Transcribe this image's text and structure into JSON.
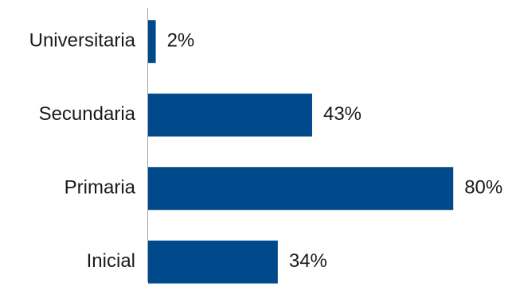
{
  "chart_data": {
    "type": "bar",
    "orientation": "horizontal",
    "categories": [
      "Universitaria",
      "Secundaria",
      "Primaria",
      "Inicial"
    ],
    "values": [
      2,
      43,
      80,
      34
    ],
    "value_labels": [
      "2%",
      "43%",
      "80%",
      "34%"
    ],
    "unit": "%",
    "xlim": [
      0,
      100
    ],
    "grid": false,
    "legend": "none",
    "bar_color": "#004A8C",
    "axis_color": "#A6A6A6"
  }
}
